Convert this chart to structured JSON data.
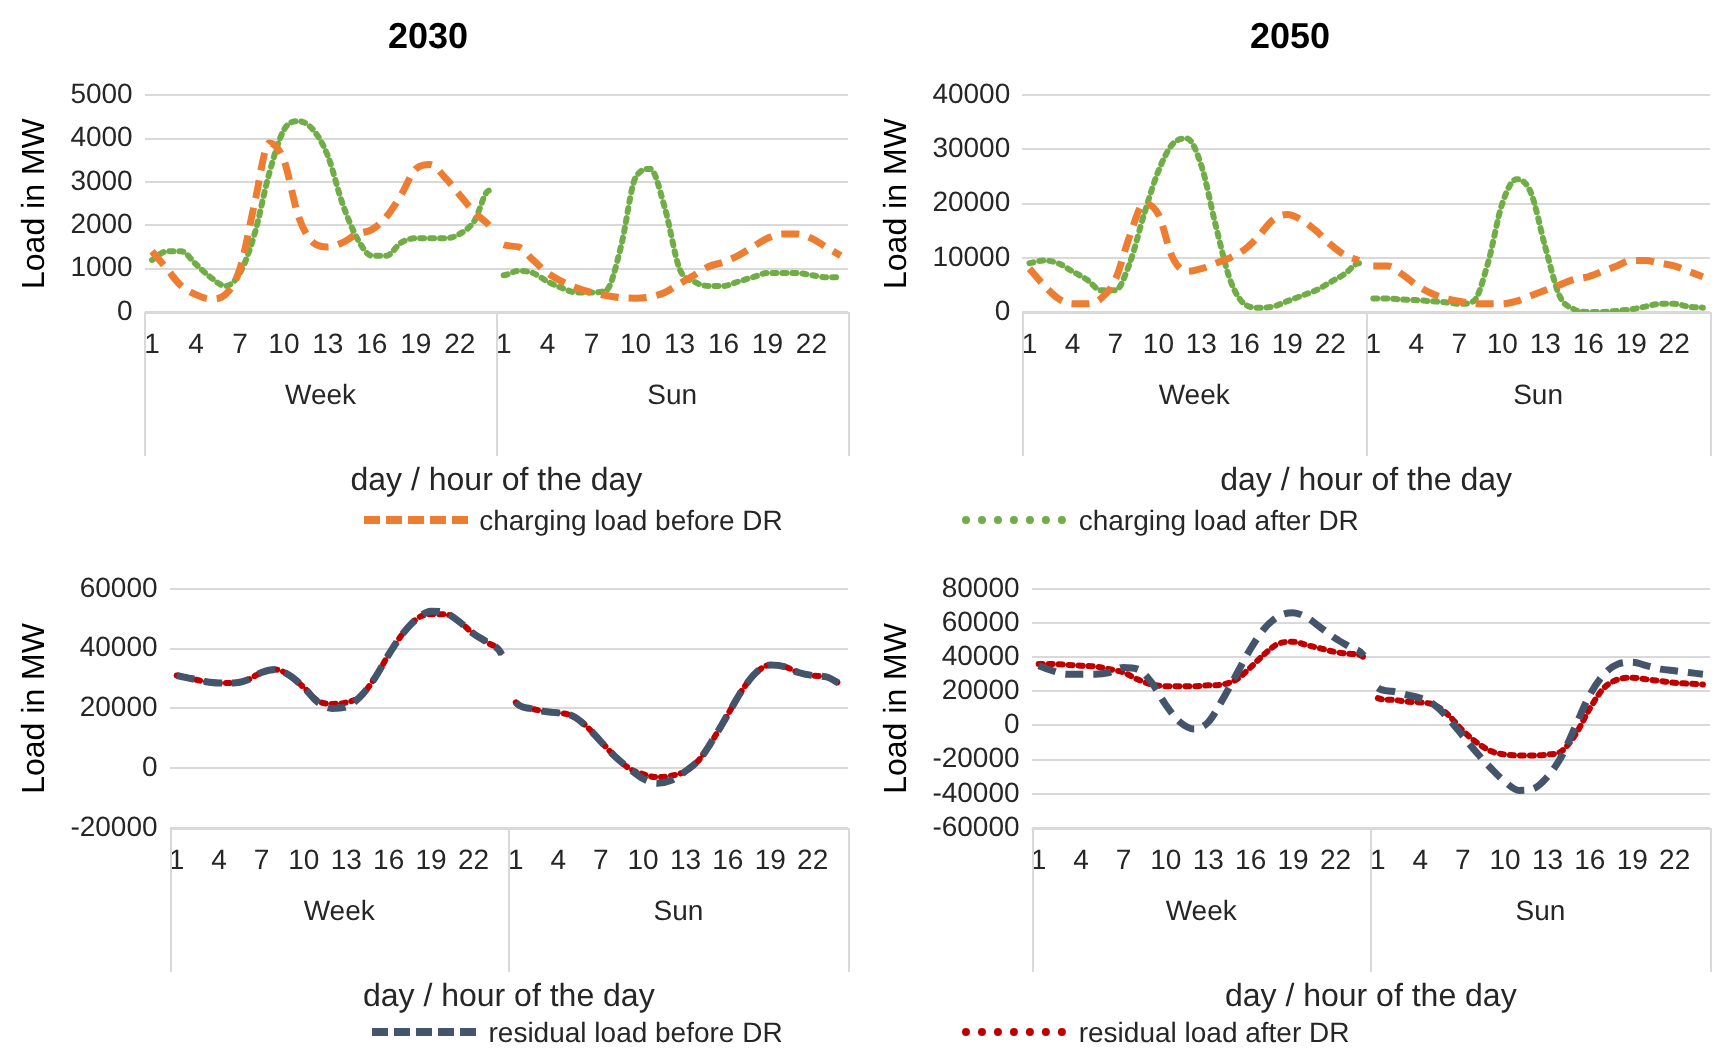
{
  "chart_data": [
    {
      "type": "line",
      "title": "2030",
      "xlabel": "day / hour of the day",
      "ylabel": "Load in MW",
      "categories": [
        "1",
        null,
        null,
        "4",
        null,
        null,
        "7",
        null,
        null,
        "10",
        null,
        null,
        "13",
        null,
        null,
        "16",
        null,
        null,
        "19",
        null,
        null,
        "22",
        null,
        null,
        "1",
        null,
        null,
        "4",
        null,
        null,
        "7",
        null,
        null,
        "10",
        null,
        null,
        "13",
        null,
        null,
        "16",
        null,
        null,
        "19",
        null,
        null,
        "22",
        null,
        null
      ],
      "annotations": [
        "Week",
        "Sun"
      ],
      "series": [
        {
          "name": "charging load before DR",
          "color": "#ed7d31",
          "line_style": "dashed",
          "values": [
            1400,
            1000,
            600,
            400,
            300,
            400,
            1000,
            2500,
            3900,
            3500,
            2200,
            1600,
            1500,
            1600,
            1800,
            1900,
            2200,
            2700,
            3300,
            3400,
            3100,
            2700,
            2300,
            2000,
            1550,
            1500,
            1200,
            900,
            700,
            550,
            450,
            380,
            330,
            320,
            350,
            450,
            650,
            850,
            1050,
            1150,
            1300,
            1500,
            1700,
            1800,
            1800,
            1700,
            1500,
            1300
          ]
        },
        {
          "name": "charging load after DR",
          "color": "#70ad47",
          "line_style": "dotted",
          "values": [
            1200,
            1400,
            1400,
            1100,
            800,
            600,
            900,
            1800,
            3200,
            4200,
            4400,
            4200,
            3600,
            2500,
            1700,
            1300,
            1300,
            1600,
            1700,
            1700,
            1700,
            1800,
            2100,
            2800,
            850,
            950,
            900,
            700,
            550,
            450,
            450,
            500,
            1500,
            3100,
            3300,
            2400,
            1000,
            700,
            600,
            600,
            700,
            800,
            900,
            900,
            900,
            850,
            800,
            800
          ]
        }
      ],
      "ylim": [
        0,
        5000
      ],
      "yticks": [
        0,
        1000,
        2000,
        3000,
        4000,
        5000
      ],
      "grid": "y",
      "legend": "bottom",
      "marker": "none"
    },
    {
      "type": "line",
      "title": "2050",
      "xlabel": "day / hour of the day",
      "ylabel": "Load in MW",
      "categories": [
        "1",
        null,
        null,
        "4",
        null,
        null,
        "7",
        null,
        null,
        "10",
        null,
        null,
        "13",
        null,
        null,
        "16",
        null,
        null,
        "19",
        null,
        null,
        "22",
        null,
        null,
        "1",
        null,
        null,
        "4",
        null,
        null,
        "7",
        null,
        null,
        "10",
        null,
        null,
        "13",
        null,
        null,
        "16",
        null,
        null,
        "19",
        null,
        null,
        "22",
        null,
        null
      ],
      "annotations": [
        "Week",
        "Sun"
      ],
      "series": [
        {
          "color": "#ed7d31",
          "line_style": "dashed",
          "values": [
            8000,
            5000,
            2500,
            1500,
            1500,
            2500,
            6000,
            14000,
            20000,
            18000,
            10000,
            7500,
            8000,
            9000,
            10000,
            11500,
            14000,
            17000,
            18000,
            17000,
            15000,
            12500,
            10500,
            9500,
            8500,
            8500,
            7000,
            5000,
            3500,
            2500,
            2000,
            1500,
            1500,
            1500,
            2000,
            3000,
            4000,
            5000,
            6000,
            6500,
            7500,
            8500,
            9500,
            9500,
            9000,
            8500,
            7500,
            6500
          ]
        },
        {
          "color": "#70ad47",
          "line_style": "dotted",
          "values": [
            9000,
            9500,
            9000,
            7500,
            6000,
            4000,
            4000,
            9000,
            18000,
            26000,
            31000,
            32000,
            27000,
            16000,
            6000,
            1500,
            800,
            1000,
            2000,
            3000,
            4000,
            5500,
            7000,
            9000,
            2500,
            2500,
            2300,
            2200,
            2000,
            1800,
            1500,
            2000,
            9000,
            20000,
            24500,
            22000,
            12000,
            3000,
            500,
            0,
            0,
            200,
            500,
            1000,
            1500,
            1500,
            1000,
            800
          ]
        }
      ],
      "ylim": [
        0,
        40000
      ],
      "yticks": [
        0,
        10000,
        20000,
        30000,
        40000
      ],
      "grid": "y",
      "marker": "none"
    },
    {
      "type": "line",
      "xlabel": "day / hour of the day",
      "ylabel": "Load in MW",
      "categories": [
        "1",
        null,
        null,
        "4",
        null,
        null,
        "7",
        null,
        null,
        "10",
        null,
        null,
        "13",
        null,
        null,
        "16",
        null,
        null,
        "19",
        null,
        null,
        "22",
        null,
        null,
        "1",
        null,
        null,
        "4",
        null,
        null,
        "7",
        null,
        null,
        "10",
        null,
        null,
        "13",
        null,
        null,
        "16",
        null,
        null,
        "19",
        null,
        null,
        "22",
        null,
        null
      ],
      "annotations": [
        "Week",
        "Sun"
      ],
      "series": [
        {
          "name": "residual load before DR",
          "color": "#44546a",
          "line_style": "dashed",
          "values": [
            31000,
            30000,
            29000,
            28500,
            28500,
            29500,
            32000,
            33000,
            31000,
            27000,
            22000,
            20000,
            20500,
            24000,
            30000,
            38000,
            45000,
            50000,
            52500,
            52000,
            49000,
            45000,
            42000,
            38000,
            22000,
            20000,
            19000,
            18500,
            17500,
            14000,
            9000,
            4000,
            0,
            -3500,
            -5000,
            -4000,
            -1000,
            3000,
            10000,
            18000,
            26000,
            32000,
            34500,
            34000,
            32000,
            31000,
            30500,
            28000
          ]
        },
        {
          "name": "residual load after DR",
          "color": "#c00000",
          "line_style": "dotted",
          "values": [
            31000,
            30000,
            29000,
            28500,
            28500,
            29500,
            32000,
            33000,
            31000,
            27000,
            22500,
            21500,
            22000,
            24000,
            30000,
            38000,
            45000,
            50000,
            51500,
            51500,
            49000,
            45000,
            42000,
            38000,
            22000,
            20000,
            19000,
            18500,
            17500,
            14000,
            9000,
            4000,
            0,
            -2000,
            -3000,
            -2500,
            -1000,
            3000,
            10000,
            18000,
            26000,
            32000,
            34500,
            34000,
            32000,
            31000,
            30500,
            28000
          ]
        }
      ],
      "ylim": [
        -20000,
        60000
      ],
      "yticks": [
        -20000,
        0,
        20000,
        40000,
        60000
      ],
      "grid": "y",
      "legend": "bottom",
      "marker": "none"
    },
    {
      "type": "line",
      "xlabel": "day / hour of the day",
      "ylabel": "Load in MW",
      "categories": [
        "1",
        null,
        null,
        "4",
        null,
        null,
        "7",
        null,
        null,
        "10",
        null,
        null,
        "13",
        null,
        null,
        "16",
        null,
        null,
        "19",
        null,
        null,
        "22",
        null,
        null,
        "1",
        null,
        null,
        "4",
        null,
        null,
        "7",
        null,
        null,
        "10",
        null,
        null,
        "13",
        null,
        null,
        "16",
        null,
        null,
        "19",
        null,
        null,
        "22",
        null,
        null
      ],
      "annotations": [
        "Week",
        "Sun"
      ],
      "series": [
        {
          "color": "#44546a",
          "line_style": "dashed",
          "values": [
            35000,
            32000,
            30000,
            30000,
            30000,
            31000,
            34000,
            33000,
            25000,
            12000,
            2000,
            -2000,
            2000,
            15000,
            30000,
            45000,
            57000,
            64000,
            66000,
            63000,
            57000,
            51000,
            46000,
            41000,
            22000,
            20000,
            18000,
            16000,
            12000,
            4000,
            -6000,
            -16000,
            -25000,
            -33000,
            -38000,
            -37000,
            -30000,
            -18000,
            0,
            18000,
            30000,
            36000,
            37000,
            35000,
            33000,
            32000,
            31000,
            30000
          ]
        },
        {
          "color": "#c00000",
          "line_style": "dotted",
          "values": [
            36000,
            36000,
            35500,
            35000,
            34500,
            33000,
            31000,
            27000,
            24000,
            23000,
            23000,
            23000,
            23500,
            24000,
            27000,
            34000,
            42000,
            48000,
            49000,
            47000,
            45000,
            43000,
            42000,
            40000,
            16000,
            15000,
            14000,
            13500,
            12000,
            6000,
            -3000,
            -10000,
            -15000,
            -17000,
            -17500,
            -17500,
            -17000,
            -15000,
            -5000,
            10000,
            22000,
            27000,
            28000,
            27000,
            26000,
            25000,
            24500,
            24000
          ]
        }
      ],
      "ylim": [
        -60000,
        80000
      ],
      "yticks": [
        -60000,
        -40000,
        -20000,
        0,
        20000,
        40000,
        60000,
        80000
      ],
      "grid": "y",
      "marker": "none"
    }
  ]
}
